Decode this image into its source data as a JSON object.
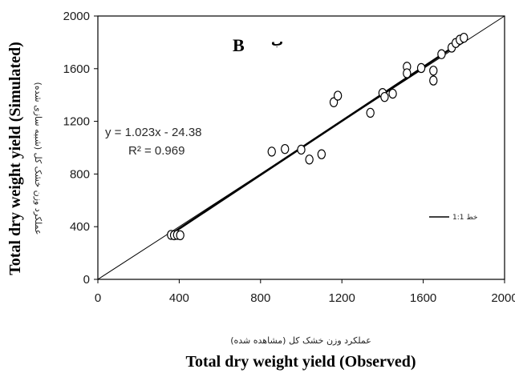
{
  "chart_data": {
    "type": "scatter",
    "panel_label": "B",
    "panel_label_fa": "ب",
    "xlabel": "Total dry weight yield (Observed)",
    "xlabel_fa": "عملکرد وزن خشک کل (مشاهده شده)",
    "ylabel": "Total dry weight yield (Simulated)",
    "ylabel_fa": "عملکرد وزن خشک کل (شبیه سازی شده)",
    "xlim": [
      0,
      2000
    ],
    "ylim": [
      0,
      2000
    ],
    "xticks": [
      0,
      400,
      800,
      1200,
      1600,
      2000
    ],
    "yticks": [
      0,
      400,
      800,
      1200,
      1600,
      2000
    ],
    "grid": false,
    "regression": {
      "equation": "y = 1.023x - 24.38",
      "r2": "R² = 0.969",
      "slope": 1.023,
      "intercept": -24.38
    },
    "reference_line": {
      "label": "خط 1:1",
      "slope": 1,
      "intercept": 0
    },
    "legend_position": "right",
    "points": [
      {
        "x": 360,
        "y": 338
      },
      {
        "x": 375,
        "y": 335
      },
      {
        "x": 390,
        "y": 338
      },
      {
        "x": 405,
        "y": 335
      },
      {
        "x": 855,
        "y": 970
      },
      {
        "x": 920,
        "y": 990
      },
      {
        "x": 1000,
        "y": 985
      },
      {
        "x": 1040,
        "y": 910
      },
      {
        "x": 1100,
        "y": 950
      },
      {
        "x": 1160,
        "y": 1345
      },
      {
        "x": 1180,
        "y": 1395
      },
      {
        "x": 1340,
        "y": 1265
      },
      {
        "x": 1400,
        "y": 1415
      },
      {
        "x": 1410,
        "y": 1385
      },
      {
        "x": 1450,
        "y": 1410
      },
      {
        "x": 1520,
        "y": 1615
      },
      {
        "x": 1520,
        "y": 1565
      },
      {
        "x": 1590,
        "y": 1605
      },
      {
        "x": 1650,
        "y": 1585
      },
      {
        "x": 1650,
        "y": 1510
      },
      {
        "x": 1690,
        "y": 1710
      },
      {
        "x": 1740,
        "y": 1760
      },
      {
        "x": 1760,
        "y": 1795
      },
      {
        "x": 1780,
        "y": 1820
      },
      {
        "x": 1800,
        "y": 1835
      }
    ]
  }
}
